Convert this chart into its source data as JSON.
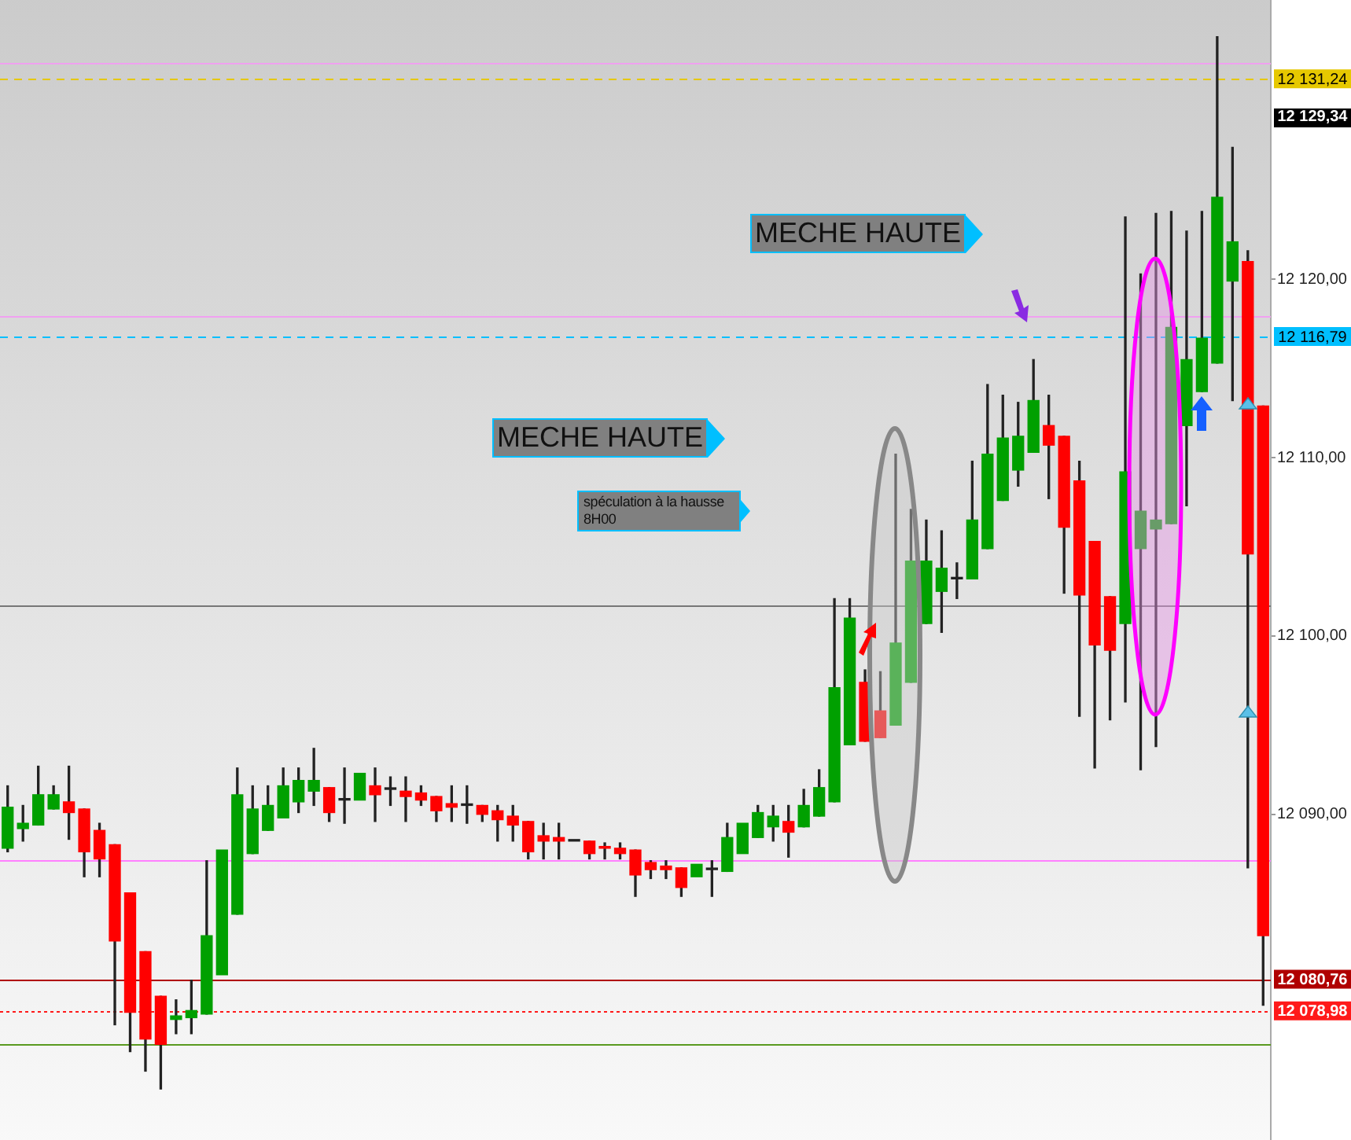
{
  "chart_data": {
    "type": "candlestick",
    "categories": [
      null,
      null,
      null,
      null,
      null,
      null,
      null,
      null,
      null,
      null,
      null,
      null,
      null,
      null,
      null,
      null,
      null,
      null,
      null,
      null,
      null,
      null,
      null,
      null,
      null,
      null,
      null,
      null,
      null,
      null,
      null,
      null,
      null,
      null,
      null,
      null,
      null,
      null,
      null,
      null,
      null,
      null,
      null,
      null,
      null,
      null,
      null,
      null,
      null,
      null,
      null,
      null,
      null,
      null,
      null,
      null,
      null,
      null,
      null,
      null,
      null,
      null,
      null,
      null,
      null,
      null,
      null,
      null,
      null,
      null,
      null,
      null,
      null,
      null,
      null,
      null,
      null,
      null,
      null,
      null,
      null,
      null,
      null
    ],
    "ohlc": [
      [
        12088.1,
        12091.6,
        12087.9,
        12090.4
      ],
      [
        12089.2,
        12090.5,
        12088.5,
        12089.5
      ],
      [
        12089.4,
        12092.7,
        12089.4,
        12091.1
      ],
      [
        12090.3,
        12091.6,
        12090.3,
        12091.1
      ],
      [
        12090.7,
        12092.7,
        12088.6,
        12090.1
      ],
      [
        12090.3,
        12090.3,
        12086.5,
        12087.9
      ],
      [
        12089.1,
        12089.5,
        12086.5,
        12087.5
      ],
      [
        12088.3,
        12088.3,
        12078.2,
        12082.9
      ],
      [
        12085.6,
        12085.6,
        12076.7,
        12078.9
      ],
      [
        12082.3,
        12082.3,
        12075.6,
        12077.4
      ],
      [
        12079.8,
        12079.8,
        12074.6,
        12077.1
      ],
      [
        12078.5,
        12079.6,
        12077.7,
        12078.7
      ],
      [
        12078.6,
        12080.7,
        12077.7,
        12079.0
      ],
      [
        12078.8,
        12087.4,
        12078.8,
        12083.2
      ],
      [
        12081.0,
        12088.0,
        12081.0,
        12088.0
      ],
      [
        12084.4,
        12092.6,
        12084.4,
        12091.1
      ],
      [
        12087.8,
        12091.6,
        12087.8,
        12090.3
      ],
      [
        12089.1,
        12091.6,
        12089.1,
        12090.5
      ],
      [
        12089.8,
        12092.6,
        12089.8,
        12091.6
      ],
      [
        12090.7,
        12092.6,
        12090.1,
        12091.9
      ],
      [
        12091.3,
        12093.7,
        12090.5,
        12091.9
      ],
      [
        12091.5,
        12091.5,
        12089.6,
        12090.1
      ],
      [
        12090.8,
        12092.6,
        12089.5,
        12090.8
      ],
      [
        12090.8,
        12092.3,
        12090.8,
        12092.3
      ],
      [
        12091.6,
        12092.6,
        12089.6,
        12091.1
      ],
      [
        12091.4,
        12092.1,
        12090.5,
        12091.4
      ],
      [
        12091.3,
        12092.1,
        12089.6,
        12091.0
      ],
      [
        12091.2,
        12091.6,
        12090.5,
        12090.8
      ],
      [
        12091.0,
        12091.0,
        12089.6,
        12090.2
      ],
      [
        12090.6,
        12091.6,
        12089.6,
        12090.4
      ],
      [
        12090.5,
        12091.6,
        12089.5,
        12090.5
      ],
      [
        12090.5,
        12090.5,
        12089.6,
        12090.0
      ],
      [
        12090.2,
        12090.5,
        12088.5,
        12089.7
      ],
      [
        12089.9,
        12090.5,
        12088.5,
        12089.4
      ],
      [
        12089.6,
        12089.6,
        12087.5,
        12087.9
      ],
      [
        12088.8,
        12089.5,
        12087.5,
        12088.5
      ],
      [
        12088.7,
        12089.5,
        12087.5,
        12088.5
      ],
      [
        12088.5,
        12088.5,
        12088.5,
        12088.5
      ],
      [
        12088.5,
        12088.5,
        12087.5,
        12087.8
      ],
      [
        12088.2,
        12088.4,
        12087.5,
        12088.1
      ],
      [
        12088.1,
        12088.4,
        12087.5,
        12087.8
      ],
      [
        12088.0,
        12088.0,
        12085.4,
        12086.6
      ],
      [
        12087.3,
        12087.4,
        12086.4,
        12086.9
      ],
      [
        12087.1,
        12087.4,
        12086.4,
        12086.9
      ],
      [
        12087.0,
        12087.0,
        12085.4,
        12085.9
      ],
      [
        12086.5,
        12087.2,
        12086.5,
        12087.2
      ],
      [
        12086.9,
        12087.4,
        12085.4,
        12086.9
      ],
      [
        12086.8,
        12089.5,
        12086.8,
        12088.7
      ],
      [
        12087.8,
        12089.5,
        12087.8,
        12089.5
      ],
      [
        12088.7,
        12090.5,
        12088.7,
        12090.1
      ],
      [
        12089.3,
        12090.5,
        12088.5,
        12089.9
      ],
      [
        12089.6,
        12090.5,
        12087.6,
        12089.0
      ],
      [
        12089.3,
        12091.4,
        12089.3,
        12090.5
      ],
      [
        12089.9,
        12092.5,
        12089.9,
        12091.5
      ],
      [
        12090.7,
        12102.1,
        12090.7,
        12097.1
      ],
      [
        12093.9,
        12102.1,
        12093.9,
        12101.0
      ],
      [
        12097.4,
        12098.1,
        12094.1,
        12094.1
      ],
      [
        12095.8,
        12098.0,
        12094.3,
        12094.3
      ],
      [
        12095.0,
        12110.2,
        12095.0,
        12099.6
      ],
      [
        12097.4,
        12107.1,
        12097.4,
        12104.2
      ],
      [
        12100.7,
        12106.5,
        12100.7,
        12104.2
      ],
      [
        12102.5,
        12105.9,
        12100.2,
        12103.8
      ],
      [
        12103.2,
        12104.1,
        12102.1,
        12103.2
      ],
      [
        12103.2,
        12109.8,
        12103.2,
        12106.5
      ],
      [
        12104.9,
        12114.1,
        12104.9,
        12110.2
      ],
      [
        12107.6,
        12113.5,
        12107.6,
        12111.1
      ],
      [
        12109.3,
        12113.1,
        12108.4,
        12111.2
      ],
      [
        12110.3,
        12115.5,
        12110.3,
        12113.2
      ],
      [
        12111.8,
        12113.5,
        12107.7,
        12110.7
      ],
      [
        12111.2,
        12111.2,
        12102.4,
        12106.1
      ],
      [
        12108.7,
        12109.8,
        12095.5,
        12102.3
      ],
      [
        12105.3,
        12105.3,
        12092.6,
        12099.5
      ],
      [
        12102.2,
        12102.2,
        12095.3,
        12099.2
      ],
      [
        12100.7,
        12123.5,
        12096.3,
        12109.2
      ],
      [
        12104.9,
        12120.3,
        12092.5,
        12107.0
      ],
      [
        12106.0,
        12123.7,
        12093.8,
        12106.5
      ],
      [
        12106.3,
        12123.8,
        12106.3,
        12117.3
      ],
      [
        12111.8,
        12122.7,
        12107.3,
        12115.5
      ],
      [
        12113.7,
        12123.8,
        12113.7,
        12116.7
      ],
      [
        12115.3,
        12133.6,
        12115.3,
        12124.6
      ],
      [
        12119.9,
        12127.4,
        12113.2,
        12122.1
      ],
      [
        12121.0,
        12121.6,
        12087.0,
        12104.6
      ],
      [
        12112.9,
        12112.9,
        12079.3,
        12083.2
      ]
    ],
    "colors": [
      "#00a000",
      "#00a000",
      "#00a000",
      "#00a000",
      "#ff0000",
      "#ff0000",
      "#ff0000",
      "#ff0000",
      "#ff0000",
      "#ff0000",
      "#ff0000",
      "#00a000",
      "#00a000",
      "#00a000",
      "#00a000",
      "#00a000",
      "#00a000",
      "#00a000",
      "#00a000",
      "#00a000",
      "#00a000",
      "#ff0000",
      "#222222",
      "#00a000",
      "#ff0000",
      "#222222",
      "#ff0000",
      "#ff0000",
      "#ff0000",
      "#ff0000",
      "#222222",
      "#ff0000",
      "#ff0000",
      "#ff0000",
      "#ff0000",
      "#ff0000",
      "#ff0000",
      "#222222",
      "#ff0000",
      "#ff0000",
      "#ff0000",
      "#ff0000",
      "#ff0000",
      "#ff0000",
      "#ff0000",
      "#00a000",
      "#222222",
      "#00a000",
      "#00a000",
      "#00a000",
      "#00a000",
      "#ff0000",
      "#00a000",
      "#00a000",
      "#00a000",
      "#00a000",
      "#ff0000",
      "#ff0000",
      "#00a000",
      "#00a000",
      "#00a000",
      "#00a000",
      "#222222",
      "#00a000",
      "#00a000",
      "#00a000",
      "#00a000",
      "#00a000",
      "#ff0000",
      "#ff0000",
      "#ff0000",
      "#ff0000",
      "#ff0000",
      "#00a000",
      "#00a000",
      "#00a000",
      "#00a000",
      "#00a000",
      "#00a000",
      "#00a000",
      "#00a000",
      "#ff0000",
      "#ff0000"
    ],
    "ylim": [
      12071.3,
      12136.1
    ],
    "yticks": [
      {
        "value": 12090,
        "label": "12 090,00"
      },
      {
        "value": 12100,
        "label": "12 100,00"
      },
      {
        "value": 12110,
        "label": "12 110,00"
      },
      {
        "value": 12120,
        "label": "12 120,00"
      }
    ],
    "ref_lines": [
      {
        "axis": "y",
        "value": 12131.24,
        "label": "12 131,24",
        "color": "#e6c800",
        "line_style": "dashed"
      },
      {
        "axis": "y",
        "value": 12116.79,
        "label": "12 116,79",
        "color": "#00bfff",
        "line_style": "dashed"
      },
      {
        "axis": "y",
        "value": 12080.76,
        "label": "12 080,76",
        "color": "#b00000",
        "line_style": "solid"
      },
      {
        "axis": "y",
        "value": 12078.98,
        "label": "12 078,98",
        "color": "#ff1a1a",
        "line_style": "dotted"
      },
      {
        "axis": "y",
        "value": 12132.1,
        "label": null,
        "color": "#f0a0f0",
        "line_style": "solid"
      },
      {
        "axis": "y",
        "value": 12117.9,
        "label": null,
        "color": "#f0a0f0",
        "line_style": "solid"
      },
      {
        "axis": "y",
        "value": 12101.7,
        "label": null,
        "color": "#777777",
        "line_style": "solid"
      },
      {
        "axis": "y",
        "value": 12087.4,
        "label": null,
        "color": "#ff80ff",
        "line_style": "solid"
      },
      {
        "axis": "y",
        "value": 12077.1,
        "label": null,
        "color": "#5a9a20",
        "line_style": "solid"
      }
    ],
    "annotations": [
      "MECHE HAUTE",
      "MECHE HAUTE",
      "spéculation à la hausse 8H00",
      "12 129,34"
    ],
    "grid": false,
    "legend": false,
    "tick_labels": "y"
  }
}
